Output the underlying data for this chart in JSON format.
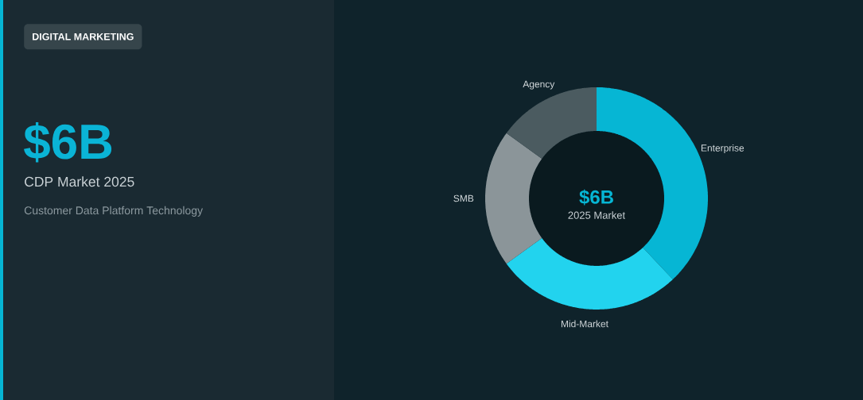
{
  "chart_data": {
    "type": "donut",
    "title": "CDP Market 2025",
    "subtitle": "Customer Data Platform Technology",
    "annotations": [
      "DIGITAL MARKETING",
      "$6B",
      "$6B",
      "2025 Market"
    ],
    "categories": [
      "Enterprise",
      "Mid-Market",
      "SMB",
      "Agency"
    ],
    "values": [
      38,
      27,
      20,
      15
    ],
    "colors": [
      "#06b6d4",
      "#22d3ee",
      "#8b9599",
      "#4b5b60"
    ]
  }
}
